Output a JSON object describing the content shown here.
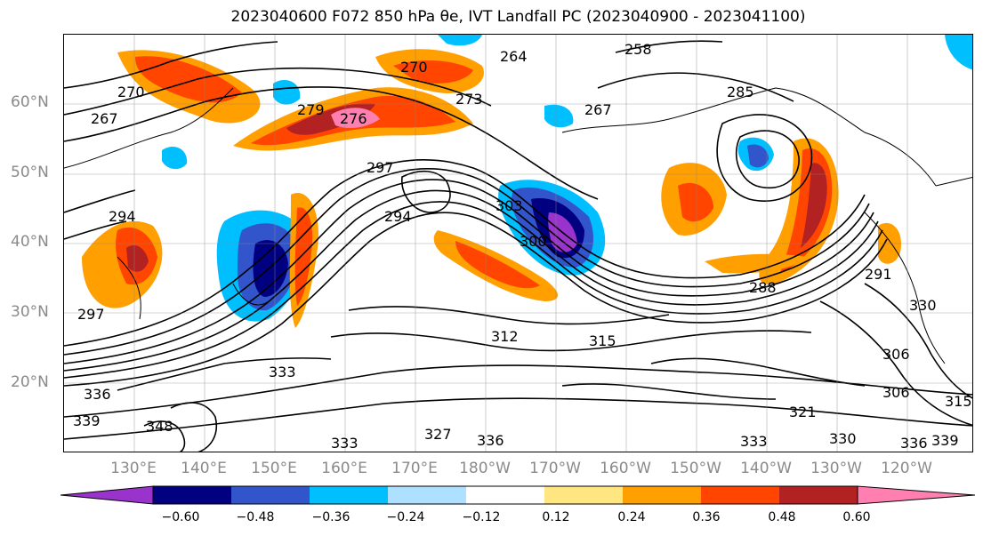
{
  "title": "2023040600 F072 850 hPa θe, IVT Landfall PC (2023040900 - 2023041100)",
  "lat_labels": [
    "60°N",
    "50°N",
    "40°N",
    "30°N",
    "20°N"
  ],
  "lon_labels": [
    "130°E",
    "140°E",
    "150°E",
    "160°E",
    "170°E",
    "180°W",
    "170°W",
    "160°W",
    "150°W",
    "140°W",
    "130°W",
    "120°W"
  ],
  "contour_labels": [
    "264",
    "258",
    "273",
    "285",
    "267",
    "270",
    "279",
    "276",
    "267",
    "270",
    "297",
    "294",
    "303",
    "300",
    "294",
    "297",
    "291",
    "315",
    "312",
    "333",
    "336",
    "327",
    "333",
    "330",
    "336",
    "339",
    "321",
    "306",
    "306",
    "315",
    "348",
    "339",
    "336",
    "333",
    "330",
    "288"
  ],
  "colorbar": {
    "ticks": [
      "−0.60",
      "−0.48",
      "−0.36",
      "−0.24",
      "−0.12",
      "0.12",
      "0.24",
      "0.36",
      "0.48",
      "0.60"
    ],
    "levels": [
      -0.72,
      -0.6,
      -0.48,
      -0.36,
      -0.24,
      -0.12,
      0.12,
      0.24,
      0.36,
      0.48,
      0.6,
      0.72
    ],
    "colors": [
      "#9933cc",
      "#000080",
      "#3355cc",
      "#00bfff",
      "#aee0ff",
      "#ffffff",
      "#ffe680",
      "#ff9f00",
      "#ff4500",
      "#b22222",
      "#ff80b0"
    ]
  },
  "palette": {
    "purple": "#9933cc",
    "navy": "#000080",
    "blue": "#3355cc",
    "cyan": "#00bfff",
    "lightblue": "#aee0ff",
    "yellow": "#ffe680",
    "orange": "#ff9f00",
    "redorange": "#ff4500",
    "darkred": "#b22222",
    "pink": "#ff80b0"
  }
}
